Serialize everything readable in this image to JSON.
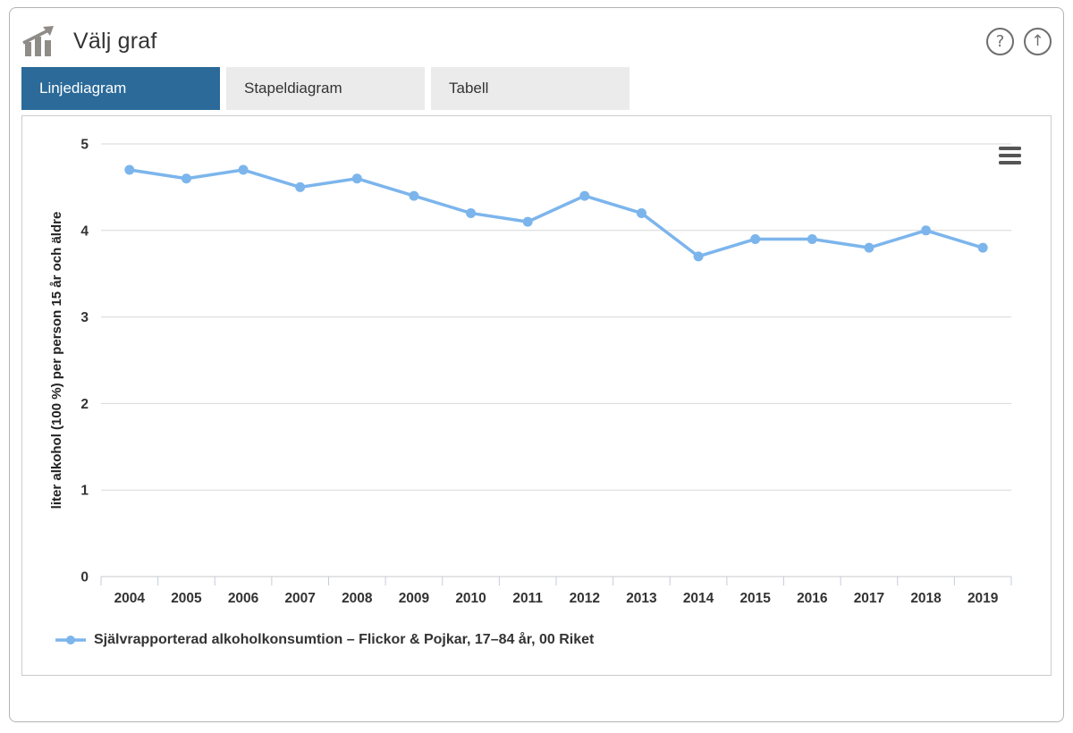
{
  "header": {
    "title": "Välj graf",
    "help_label": "?",
    "scroll_top_label": "↑"
  },
  "tabs": [
    {
      "id": "linjediagram",
      "label": "Linjediagram",
      "active": true
    },
    {
      "id": "stapeldiagram",
      "label": "Stapeldiagram",
      "active": false
    },
    {
      "id": "tabell",
      "label": "Tabell",
      "active": false
    }
  ],
  "icons": {
    "app": "bar-chart-with-arrow-icon",
    "help": "question-mark-icon",
    "scroll_top": "up-arrow-icon",
    "chart_menu": "hamburger-icon"
  },
  "colors": {
    "accent": "#2b6a99",
    "tab_inactive_bg": "#ebebeb",
    "series_line": "#7cb5ec",
    "gridline": "#d8d8d8",
    "axis_line": "#c9c9c9",
    "tick": "#c6cdd8",
    "text_dark": "#333333",
    "icon_gray": "#8f8c88",
    "hamburger": "#555555"
  },
  "chart_data": {
    "type": "line",
    "categories": [
      "2004",
      "2005",
      "2006",
      "2007",
      "2008",
      "2009",
      "2010",
      "2011",
      "2012",
      "2013",
      "2014",
      "2015",
      "2016",
      "2017",
      "2018",
      "2019"
    ],
    "series": [
      {
        "name": "Självrapporterad alkoholkonsumtion – Flickor & Pojkar, 17–84 år, 00 Riket",
        "values": [
          4.7,
          4.6,
          4.7,
          4.5,
          4.6,
          4.4,
          4.2,
          4.1,
          4.4,
          4.2,
          3.7,
          3.9,
          3.9,
          3.8,
          4.0,
          3.8
        ]
      }
    ],
    "xlabel": "",
    "ylabel": "liter alkohol (100 %) per person 15 år och äldre",
    "ylim": [
      0,
      5
    ],
    "yticks": [
      0,
      1,
      2,
      3,
      4,
      5
    ],
    "grid": true,
    "legend_position": "bottom-left",
    "marker": "circle"
  }
}
